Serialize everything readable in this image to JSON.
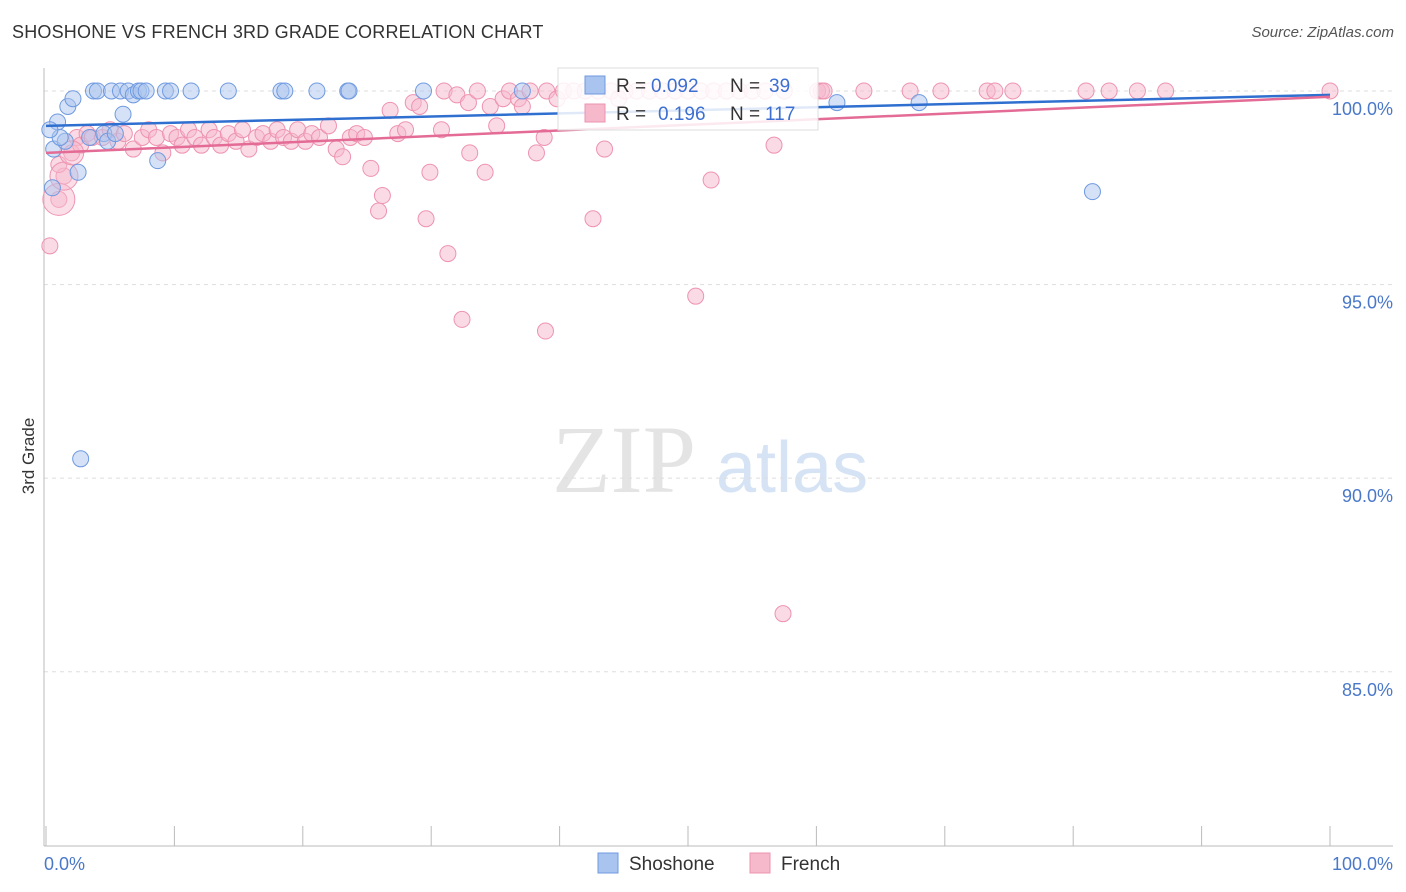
{
  "header": {
    "title": "SHOSHONE VS FRENCH 3RD GRADE CORRELATION CHART",
    "source": "Source: ZipAtlas.com"
  },
  "watermark": {
    "zip": "ZIP",
    "atlas": "atlas"
  },
  "legend": {
    "shoshone": {
      "r_label": "R =",
      "r_value": "0.092",
      "n_label": "N =",
      "n_value": "39"
    },
    "french": {
      "r_label": "R =",
      "r_value": "0.196",
      "n_label": "N =",
      "n_value": "117"
    }
  },
  "bottom_legend": [
    "Shoshone",
    "French"
  ],
  "colors": {
    "shoshone_fill": "#a9c4ee",
    "shoshone_stroke": "#6f9ae0",
    "shoshone_line": "#2f6fd0",
    "french_fill": "#f6b8cb",
    "french_stroke": "#ee93b0",
    "french_line": "#e36b95",
    "tick_text": "#4a78c8",
    "grid": "#dddddd"
  },
  "chart_data": {
    "type": "scatter",
    "title": "SHOSHONE VS FRENCH 3RD GRADE CORRELATION CHART",
    "xlabel": "",
    "ylabel": "3rd Grade",
    "xlim": [
      0,
      100
    ],
    "ylim": [
      80.5,
      100.8
    ],
    "x_tick_labels": [
      "0.0%",
      "100.0%"
    ],
    "y_ticks": [
      100,
      95,
      90,
      85
    ],
    "y_tick_labels": [
      "100.0%",
      "95.0%",
      "90.0%",
      "85.0%"
    ],
    "legend_position": "top-center",
    "series": [
      {
        "name": "Shoshone",
        "r": 0.092,
        "n": 39,
        "trend": [
          [
            0,
            99.1
          ],
          [
            100,
            99.9
          ]
        ],
        "points": [
          [
            0.6,
            98.5
          ],
          [
            0.9,
            99.2
          ],
          [
            1.7,
            99.6
          ],
          [
            2.1,
            99.8
          ],
          [
            2.5,
            97.9
          ],
          [
            3.7,
            100
          ],
          [
            4.0,
            100
          ],
          [
            5.1,
            100
          ],
          [
            5.8,
            100
          ],
          [
            6.4,
            100
          ],
          [
            6.8,
            99.9
          ],
          [
            7.2,
            100
          ],
          [
            7.4,
            100
          ],
          [
            7.8,
            100
          ],
          [
            9.3,
            100
          ],
          [
            9.7,
            100
          ],
          [
            11.3,
            100
          ],
          [
            14.2,
            100
          ],
          [
            18.3,
            100
          ],
          [
            18.6,
            100
          ],
          [
            21.1,
            100
          ],
          [
            23.5,
            100
          ],
          [
            23.6,
            100
          ],
          [
            29.4,
            100
          ],
          [
            37.1,
            100
          ],
          [
            6.0,
            99.4
          ],
          [
            1.5,
            98.7
          ],
          [
            3.4,
            98.8
          ],
          [
            4.5,
            98.9
          ],
          [
            4.8,
            98.7
          ],
          [
            8.7,
            98.2
          ],
          [
            2.7,
            90.5
          ],
          [
            0.5,
            97.5
          ],
          [
            1.1,
            98.8
          ],
          [
            61.6,
            99.7
          ],
          [
            68.0,
            99.7
          ],
          [
            81.5,
            97.4
          ],
          [
            5.4,
            98.9
          ],
          [
            0.3,
            99.0
          ]
        ]
      },
      {
        "name": "French",
        "r": 0.196,
        "n": 117,
        "trend": [
          [
            0,
            98.4
          ],
          [
            100,
            99.85
          ]
        ],
        "points": [
          [
            0.3,
            96.0
          ],
          [
            1.0,
            97.2
          ],
          [
            1.4,
            97.8
          ],
          [
            2.0,
            98.4
          ],
          [
            2.4,
            98.8
          ],
          [
            2.7,
            98.6
          ],
          [
            3.2,
            98.9
          ],
          [
            3.6,
            98.8
          ],
          [
            4.4,
            98.8
          ],
          [
            5.0,
            99.0
          ],
          [
            5.6,
            98.7
          ],
          [
            6.1,
            98.9
          ],
          [
            6.8,
            98.5
          ],
          [
            7.5,
            98.8
          ],
          [
            8.0,
            99.0
          ],
          [
            8.6,
            98.8
          ],
          [
            9.1,
            98.4
          ],
          [
            9.7,
            98.9
          ],
          [
            10.2,
            98.8
          ],
          [
            10.6,
            98.6
          ],
          [
            11.1,
            99.0
          ],
          [
            11.6,
            98.8
          ],
          [
            12.1,
            98.6
          ],
          [
            12.7,
            99.0
          ],
          [
            13.1,
            98.8
          ],
          [
            13.6,
            98.6
          ],
          [
            14.2,
            98.9
          ],
          [
            14.8,
            98.7
          ],
          [
            15.3,
            99.0
          ],
          [
            15.8,
            98.5
          ],
          [
            16.4,
            98.8
          ],
          [
            16.9,
            98.9
          ],
          [
            17.5,
            98.7
          ],
          [
            18.0,
            99.0
          ],
          [
            18.5,
            98.8
          ],
          [
            19.1,
            98.7
          ],
          [
            19.6,
            99.0
          ],
          [
            20.2,
            98.7
          ],
          [
            20.7,
            98.9
          ],
          [
            21.3,
            98.8
          ],
          [
            22.0,
            99.1
          ],
          [
            22.6,
            98.5
          ],
          [
            23.1,
            98.3
          ],
          [
            23.7,
            98.8
          ],
          [
            24.2,
            98.9
          ],
          [
            24.8,
            98.8
          ],
          [
            25.3,
            98.0
          ],
          [
            25.9,
            96.9
          ],
          [
            26.2,
            97.3
          ],
          [
            26.8,
            99.5
          ],
          [
            27.4,
            98.9
          ],
          [
            28.0,
            99.0
          ],
          [
            28.6,
            99.7
          ],
          [
            29.1,
            99.6
          ],
          [
            29.6,
            96.7
          ],
          [
            29.9,
            97.9
          ],
          [
            30.8,
            99.0
          ],
          [
            31.0,
            100.0
          ],
          [
            31.3,
            95.8
          ],
          [
            32.0,
            99.9
          ],
          [
            32.4,
            94.1
          ],
          [
            32.9,
            99.7
          ],
          [
            33.0,
            98.4
          ],
          [
            33.6,
            100.0
          ],
          [
            34.2,
            97.9
          ],
          [
            34.6,
            99.6
          ],
          [
            35.1,
            99.1
          ],
          [
            35.6,
            99.8
          ],
          [
            36.1,
            100.0
          ],
          [
            36.8,
            99.8
          ],
          [
            37.1,
            99.6
          ],
          [
            37.7,
            100.0
          ],
          [
            38.2,
            98.4
          ],
          [
            38.8,
            98.8
          ],
          [
            39.0,
            100.0
          ],
          [
            38.9,
            93.8
          ],
          [
            39.8,
            99.8
          ],
          [
            40.3,
            100.0
          ],
          [
            41.1,
            100.0
          ],
          [
            42.0,
            100.0
          ],
          [
            42.6,
            96.7
          ],
          [
            43.0,
            100.0
          ],
          [
            43.5,
            98.5
          ],
          [
            44.0,
            100.0
          ],
          [
            44.6,
            99.8
          ],
          [
            45.1,
            100.0
          ],
          [
            46.0,
            100.0
          ],
          [
            47.0,
            100.0
          ],
          [
            48.0,
            100.0
          ],
          [
            49.0,
            100.0
          ],
          [
            50.0,
            100.0
          ],
          [
            51.0,
            100.0
          ],
          [
            52.0,
            100.0
          ],
          [
            53.0,
            100.0
          ],
          [
            54.0,
            100.0
          ],
          [
            55.0,
            100.0
          ],
          [
            56.0,
            100.0
          ],
          [
            50.6,
            94.7
          ],
          [
            51.8,
            97.7
          ],
          [
            56.7,
            98.6
          ],
          [
            57.5,
            100.0
          ],
          [
            60.1,
            100.0
          ],
          [
            60.4,
            100.0
          ],
          [
            60.6,
            100.0
          ],
          [
            63.7,
            100.0
          ],
          [
            67.3,
            100.0
          ],
          [
            69.7,
            100.0
          ],
          [
            73.3,
            100.0
          ],
          [
            73.9,
            100.0
          ],
          [
            75.3,
            100.0
          ],
          [
            81.0,
            100.0
          ],
          [
            82.8,
            100.0
          ],
          [
            85.0,
            100.0
          ],
          [
            87.2,
            100.0
          ],
          [
            100.0,
            100.0
          ],
          [
            57.4,
            86.5
          ],
          [
            1.0,
            98.1
          ]
        ]
      }
    ]
  }
}
